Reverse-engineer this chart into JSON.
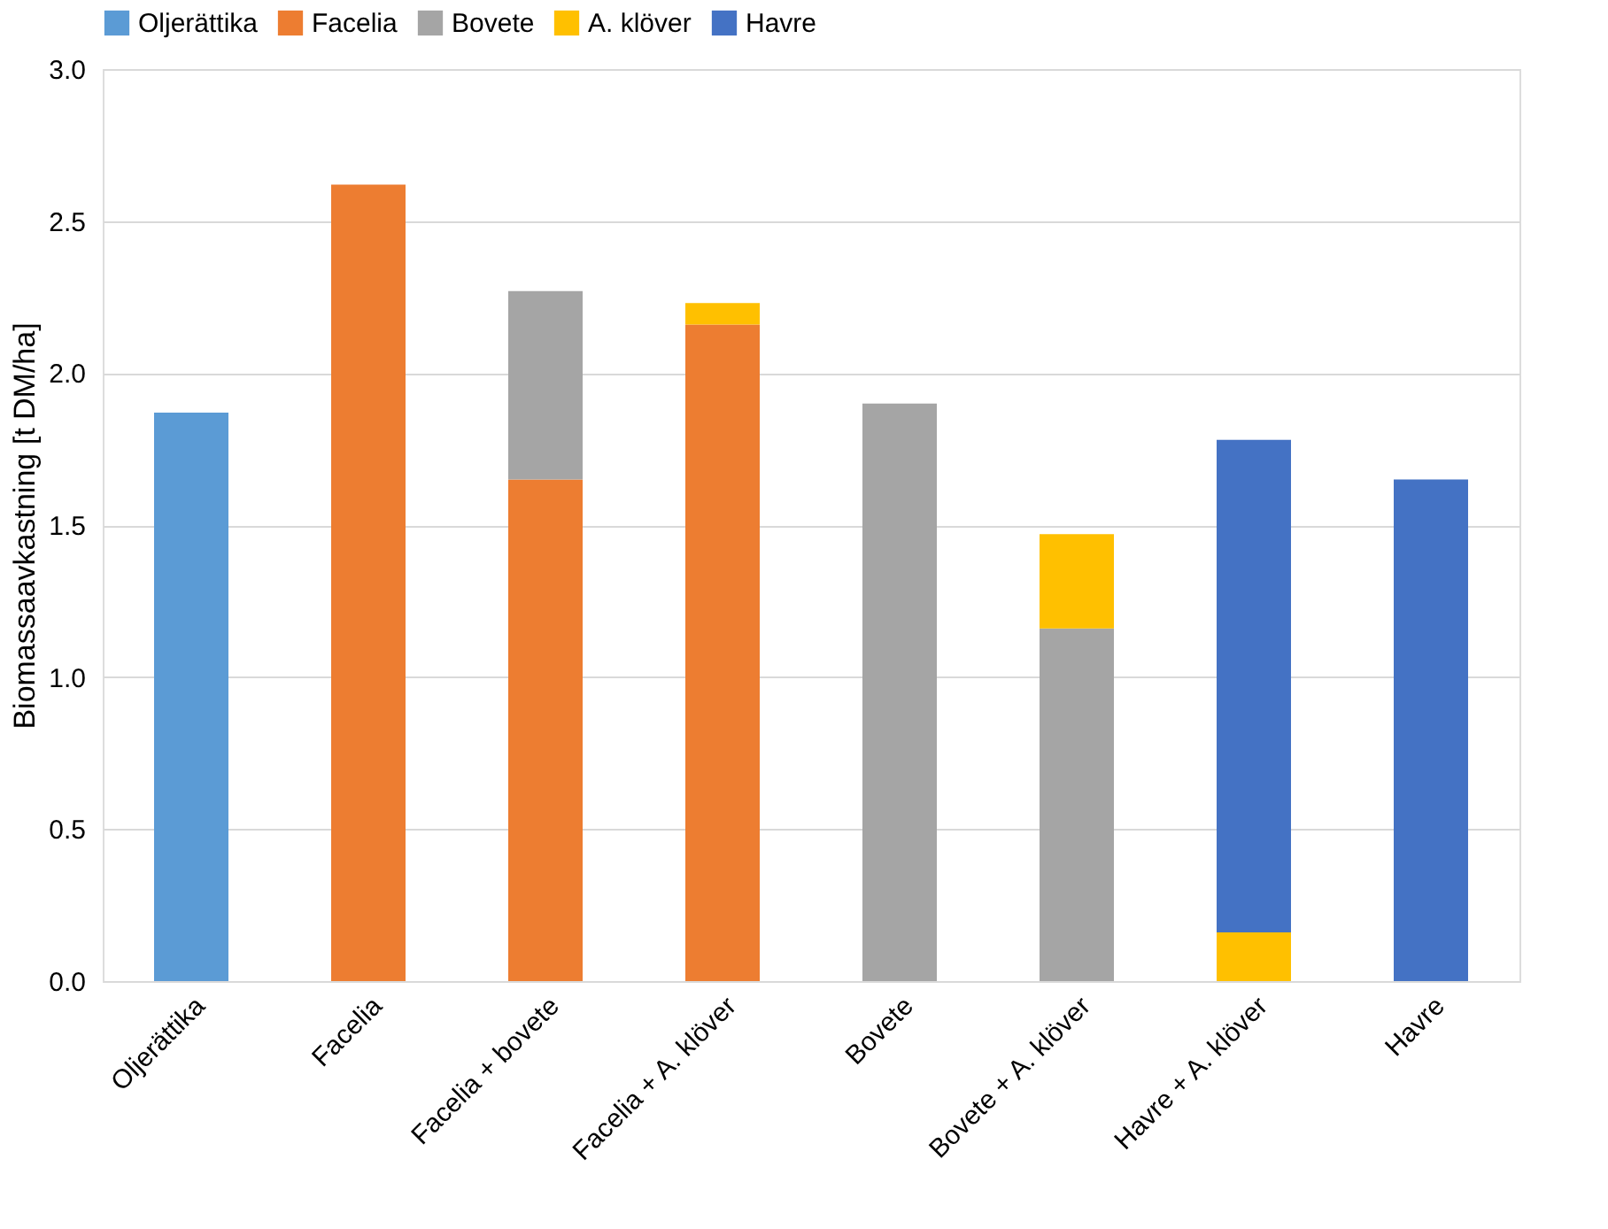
{
  "chart_data": {
    "type": "bar",
    "stacked": true,
    "ylabel": "Biomassaavkastning [t DM/ha]",
    "categories": [
      "Oljerättika",
      "Facelia",
      "Facelia + bovete",
      "Facelia + A. klöver",
      "Bovete",
      "Bovete + A. klöver",
      "Havre + A. klöver",
      "Havre"
    ],
    "series": [
      {
        "name": "Oljerättika",
        "color": "#5b9bd5",
        "values": [
          1.87,
          null,
          null,
          null,
          null,
          null,
          null,
          null
        ]
      },
      {
        "name": "Facelia",
        "color": "#ed7d31",
        "values": [
          null,
          2.62,
          1.65,
          2.16,
          null,
          null,
          null,
          null
        ]
      },
      {
        "name": "Bovete",
        "color": "#a5a5a5",
        "values": [
          null,
          null,
          0.62,
          null,
          1.9,
          1.16,
          null,
          null
        ]
      },
      {
        "name": "A. klöver",
        "color": "#ffc000",
        "values": [
          null,
          null,
          null,
          0.07,
          null,
          0.31,
          0.16,
          null
        ]
      },
      {
        "name": "Havre",
        "color": "#4472c4",
        "values": [
          null,
          null,
          null,
          null,
          null,
          null,
          1.62,
          1.65
        ]
      }
    ],
    "ylim": [
      0,
      3
    ],
    "yticks": [
      {
        "value": 0,
        "label": "0.0"
      },
      {
        "value": 0.5,
        "label": "0.5"
      },
      {
        "value": 1,
        "label": "1.0"
      },
      {
        "value": 1.5,
        "label": "1.5"
      },
      {
        "value": 2,
        "label": "2.0"
      },
      {
        "value": 2.5,
        "label": "2.5"
      },
      {
        "value": 3,
        "label": "3.0"
      }
    ],
    "grid": "y",
    "legend": "top"
  }
}
